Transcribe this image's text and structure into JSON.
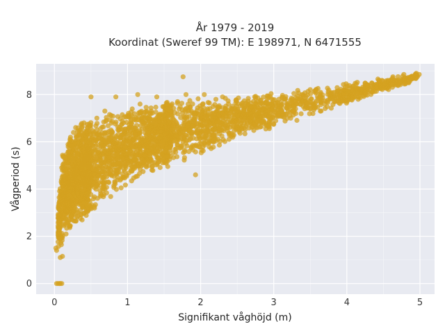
{
  "chart_data": {
    "type": "scatter",
    "title_lines": [
      "År 1979 - 2019",
      "Koordinat (Sweref 99 TM): E 198971, N 6471555"
    ],
    "xlabel": "Signifikant våghöjd (m)",
    "ylabel": "Vågperiod (s)",
    "xlim": [
      -0.25,
      5.2
    ],
    "ylim": [
      -0.45,
      9.3
    ],
    "x_ticks": [
      0,
      1,
      2,
      3,
      4,
      5
    ],
    "x_tick_labels": [
      "0",
      "1",
      "2",
      "3",
      "4",
      "5"
    ],
    "y_ticks": [
      0,
      2,
      4,
      6,
      8
    ],
    "y_tick_labels": [
      "0",
      "2",
      "4",
      "6",
      "8"
    ],
    "grid": true,
    "marker_color": "#D4A120",
    "plot_background": "#E8EAF1",
    "grid_color": "#FFFFFF",
    "band_envelope": {
      "x": [
        0.05,
        0.1,
        0.2,
        0.3,
        0.5,
        0.7,
        1.0,
        1.5,
        2.0,
        2.5,
        3.0,
        3.5,
        4.0,
        4.5,
        4.97
      ],
      "y_low": [
        1.2,
        1.4,
        1.9,
        2.3,
        2.9,
        3.4,
        4.0,
        4.8,
        5.5,
        6.0,
        6.5,
        7.1,
        7.6,
        8.1,
        8.6
      ],
      "y_high": [
        3.3,
        5.4,
        6.5,
        6.8,
        7.1,
        7.3,
        7.6,
        7.8,
        7.9,
        8.0,
        8.2,
        8.3,
        8.5,
        8.7,
        8.9
      ]
    },
    "points": [
      [
        0.03,
        0.0
      ],
      [
        0.05,
        0.0
      ],
      [
        0.07,
        0.0
      ],
      [
        0.08,
        0.0
      ],
      [
        0.1,
        0.0
      ],
      [
        1.76,
        8.75
      ],
      [
        4.95,
        8.9
      ],
      [
        4.78,
        8.85
      ],
      [
        4.99,
        8.85
      ],
      [
        4.63,
        8.75
      ],
      [
        4.69,
        8.5
      ],
      [
        4.8,
        8.45
      ],
      [
        0.5,
        7.9
      ],
      [
        0.84,
        7.9
      ],
      [
        0.69,
        7.3
      ],
      [
        0.58,
        7.0
      ],
      [
        0.45,
        6.6
      ],
      [
        0.29,
        6.6
      ],
      [
        0.14,
        5.3
      ],
      [
        0.1,
        4.9
      ],
      [
        1.14,
        8.0
      ],
      [
        1.8,
        8.0
      ],
      [
        1.61,
        7.6
      ],
      [
        2.05,
        8.0
      ],
      [
        1.93,
        4.6
      ],
      [
        0.08,
        1.1
      ],
      [
        0.11,
        1.15
      ],
      [
        0.03,
        1.4
      ],
      [
        0.02,
        1.5
      ],
      [
        1.4,
        7.9
      ],
      [
        2.3,
        7.9
      ]
    ]
  }
}
